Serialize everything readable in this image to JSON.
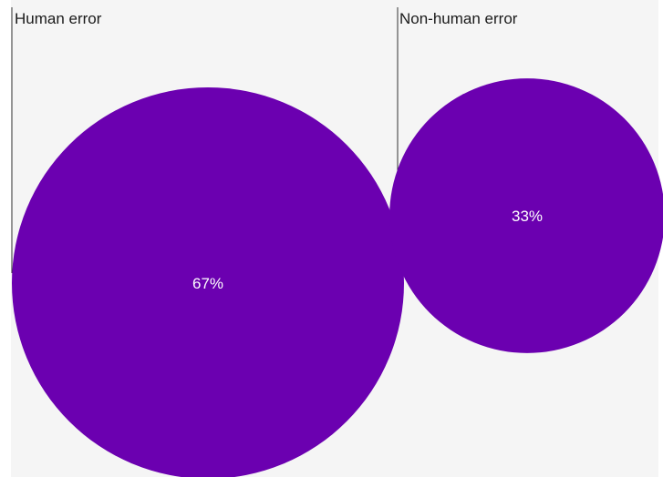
{
  "chart_data": {
    "type": "bubble",
    "categories": [
      "Human error",
      "Non-human error"
    ],
    "values": [
      67,
      33
    ],
    "value_labels": [
      "67%",
      "33%"
    ],
    "unit": "%",
    "colors": {
      "bubble": "#6b00b0",
      "background": "#f5f5f5",
      "leader_line": "#333333"
    },
    "legend": "none",
    "grid": false
  }
}
